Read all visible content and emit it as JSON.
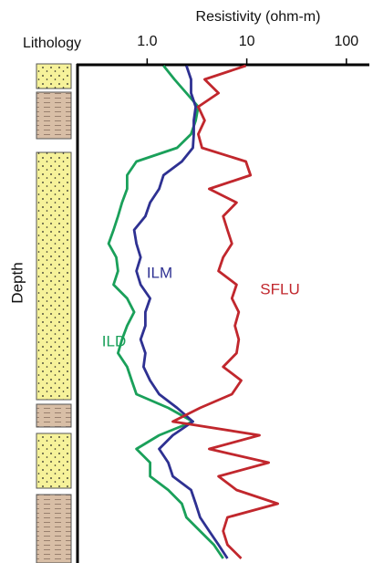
{
  "chart_data": {
    "type": "line",
    "orientation": "vertical",
    "title": "Resistivity (ohm-m)",
    "y_label": "Depth",
    "lithology_label": "Lithology",
    "xscale": "log",
    "xlim": [
      0.2,
      170
    ],
    "xticks": [
      {
        "value": 1,
        "label": "1.0"
      },
      10,
      100
    ],
    "categories": [
      null,
      null,
      null,
      null,
      null,
      null,
      null,
      null,
      null,
      null,
      null,
      null,
      null,
      null,
      null,
      null,
      null,
      null,
      null,
      null,
      null,
      null,
      null,
      null,
      null,
      null,
      null,
      null,
      null,
      null,
      null,
      null,
      null,
      null,
      null,
      null,
      null
    ],
    "series": [
      {
        "name": "ILD",
        "color": "#1aa05a",
        "values": [
          1.46,
          1.88,
          2.48,
          3.26,
          3.07,
          2.76,
          2.0,
          0.78,
          0.63,
          0.63,
          0.56,
          0.51,
          0.46,
          0.41,
          0.49,
          0.51,
          0.46,
          0.63,
          0.74,
          0.63,
          0.56,
          0.51,
          0.63,
          0.7,
          0.78,
          1.63,
          2.88,
          1.32,
          0.78,
          1.07,
          1.07,
          1.63,
          2.23,
          2.48,
          3.4,
          4.67,
          5.8
        ]
      },
      {
        "name": "ILM",
        "color": "#2e3192",
        "values": [
          2.48,
          2.76,
          2.76,
          3.07,
          2.94,
          2.94,
          2.88,
          2.23,
          1.46,
          1.32,
          1.07,
          0.96,
          0.74,
          0.78,
          0.86,
          0.78,
          0.86,
          1.07,
          0.96,
          0.96,
          0.86,
          0.96,
          0.92,
          1.07,
          1.32,
          2.0,
          2.88,
          1.81,
          1.32,
          1.63,
          1.81,
          2.76,
          3.07,
          3.4,
          4.2,
          5.2,
          6.4
        ]
      },
      {
        "name": "SFLU",
        "color": "#c1272d",
        "values": [
          9.8,
          3.78,
          5.2,
          3.26,
          3.78,
          3.26,
          3.55,
          9.8,
          10.9,
          4.2,
          7.9,
          5.8,
          6.4,
          7.1,
          5.8,
          5.2,
          7.9,
          7.1,
          8.3,
          7.6,
          8.3,
          7.9,
          5.8,
          8.8,
          7.1,
          3.4,
          1.81,
          13.4,
          4.2,
          16.6,
          5.2,
          7.9,
          20.5,
          6.4,
          5.8,
          6.4,
          8.8
        ]
      }
    ]
  }
}
